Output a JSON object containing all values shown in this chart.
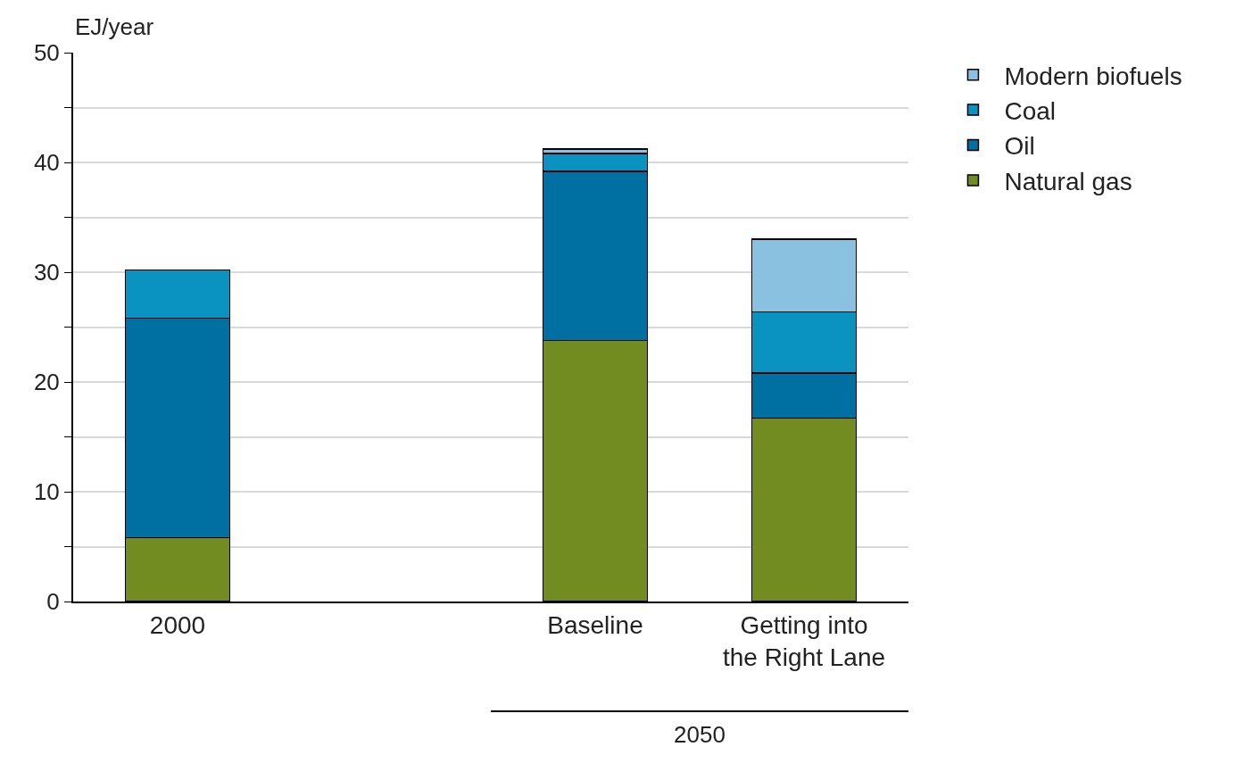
{
  "chart_data": {
    "type": "bar",
    "stacked": true,
    "ylabel": "EJ/year",
    "categories": [
      "2000",
      null,
      "Baseline",
      "Getting into the Right Lane"
    ],
    "series": [
      {
        "name": "Natural gas",
        "color": "#738c22",
        "values": [
          5.8,
          null,
          23.8,
          16.7
        ]
      },
      {
        "name": "Oil",
        "color": "#0070a3",
        "values": [
          20,
          null,
          15.4,
          4.1
        ]
      },
      {
        "name": "Coal",
        "color": "#0a93c1",
        "values": [
          4.4,
          null,
          1.6,
          5.6
        ]
      },
      {
        "name": "Modern biofuels",
        "color": "#8ac1e0",
        "values": [
          null,
          null,
          0.4,
          6.6
        ]
      }
    ],
    "ylim": [
      0,
      50
    ],
    "yticks": [
      0,
      {
        "value": 5,
        "label": null
      },
      10,
      {
        "value": 15,
        "label": null
      },
      20,
      {
        "value": 25,
        "label": null
      },
      30,
      {
        "value": 35,
        "label": null
      },
      40,
      {
        "value": 45,
        "label": null
      },
      50
    ],
    "grid": "y",
    "legend": "top right",
    "annotations": [
      "2050"
    ]
  }
}
